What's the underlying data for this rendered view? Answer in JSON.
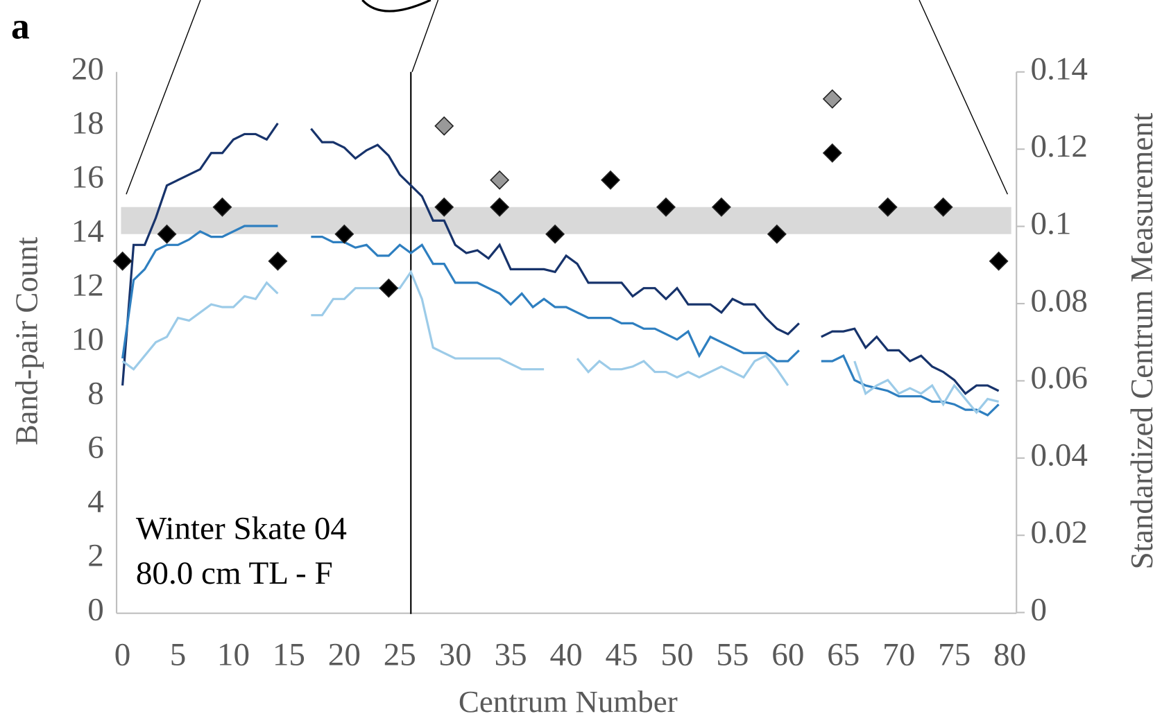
{
  "chart_data": {
    "type": "line",
    "panel_label": "a",
    "annotation": [
      "Winter Skate 04",
      "80.0 cm TL - F"
    ],
    "x_label": "Centrum Number",
    "y_label": "Band-pair Count",
    "y2_label": "Standardized Centrum Measurement",
    "xlim": [
      0,
      80
    ],
    "xticks": [
      0,
      5,
      10,
      15,
      20,
      25,
      30,
      35,
      40,
      45,
      50,
      55,
      60,
      65,
      70,
      75,
      80
    ],
    "ylim": [
      0,
      20
    ],
    "yticks": [
      0,
      2,
      4,
      6,
      8,
      10,
      12,
      14,
      16,
      18,
      20
    ],
    "y2lim": [
      0,
      0.14
    ],
    "y2ticks": [
      0,
      0.02,
      0.04,
      0.06,
      0.08,
      0.1,
      0.12,
      0.14
    ],
    "reference_band": [
      0.098,
      0.105
    ],
    "band_color": "#d9d9d9",
    "vline_x": 26,
    "x": [
      0,
      1,
      2,
      3,
      4,
      5,
      6,
      7,
      8,
      9,
      10,
      11,
      12,
      13,
      14,
      15,
      16,
      17,
      18,
      19,
      20,
      21,
      22,
      23,
      24,
      25,
      26,
      27,
      28,
      29,
      30,
      31,
      32,
      33,
      34,
      35,
      36,
      37,
      38,
      39,
      40,
      41,
      42,
      43,
      44,
      45,
      46,
      47,
      48,
      49,
      50,
      51,
      52,
      53,
      54,
      55,
      56,
      57,
      58,
      59,
      60,
      61,
      62,
      63,
      64,
      65,
      66,
      67,
      68,
      69,
      70,
      71,
      72,
      73,
      74,
      75,
      76,
      77,
      78,
      79
    ],
    "series": [
      {
        "color": "#17336b",
        "values": [
          8.4,
          13.6,
          13.6,
          14.6,
          15.8,
          16,
          16.2,
          16.4,
          17,
          17,
          17.5,
          17.7,
          17.7,
          17.5,
          18.1,
          null,
          null,
          17.9,
          17.4,
          17.4,
          17.2,
          16.8,
          17.1,
          17.3,
          16.9,
          16.2,
          15.8,
          15.4,
          14.5,
          14.5,
          13.6,
          13.3,
          13.4,
          13.1,
          13.6,
          12.7,
          12.7,
          12.7,
          12.7,
          12.6,
          13.2,
          12.9,
          12.2,
          12.2,
          12.2,
          12.2,
          11.7,
          12,
          12,
          11.6,
          12,
          11.4,
          11.4,
          11.4,
          11.1,
          11.6,
          11.4,
          11.4,
          10.9,
          10.5,
          10.3,
          10.7,
          null,
          10.2,
          10.4,
          10.4,
          10.5,
          9.8,
          10.2,
          9.7,
          9.7,
          9.3,
          9.5,
          9.1,
          8.9,
          8.6,
          8.1,
          8.4,
          8.4,
          8.2
        ]
      },
      {
        "color": "#2e7fc0",
        "values": [
          9.4,
          12.3,
          12.7,
          13.4,
          13.6,
          13.6,
          13.8,
          14.1,
          13.9,
          13.9,
          14.1,
          14.3,
          14.3,
          14.3,
          14.3,
          null,
          null,
          13.9,
          13.9,
          13.7,
          13.7,
          13.5,
          13.6,
          13.2,
          13.2,
          13.6,
          13.3,
          13.6,
          12.9,
          12.9,
          12.2,
          12.2,
          12.2,
          12,
          11.8,
          11.4,
          11.8,
          11.3,
          11.6,
          11.3,
          11.3,
          11.1,
          10.9,
          10.9,
          10.9,
          10.7,
          10.7,
          10.5,
          10.5,
          10.3,
          10.1,
          10.4,
          9.5,
          10.2,
          10,
          9.8,
          9.6,
          9.6,
          9.6,
          9.3,
          9.3,
          9.7,
          null,
          9.3,
          9.3,
          9.5,
          8.6,
          8.4,
          8.3,
          8.2,
          8,
          8,
          8,
          7.8,
          7.8,
          7.7,
          7.5,
          7.5,
          7.3,
          7.7
        ]
      },
      {
        "color": "#9ccbe8",
        "values": [
          9.3,
          9,
          9.5,
          10,
          10.2,
          10.9,
          10.8,
          11.1,
          11.4,
          11.3,
          11.3,
          11.7,
          11.6,
          12.2,
          11.8,
          null,
          null,
          11,
          11,
          11.6,
          11.6,
          12,
          12,
          12,
          12,
          12,
          12.6,
          11.6,
          9.8,
          9.6,
          9.4,
          9.4,
          9.4,
          9.4,
          9.4,
          9.2,
          9,
          9,
          9,
          null,
          null,
          9.4,
          8.9,
          9.3,
          9,
          9,
          9.1,
          9.3,
          8.9,
          8.9,
          8.7,
          8.9,
          8.7,
          8.9,
          9.1,
          8.9,
          8.7,
          9.3,
          9.5,
          9,
          8.4,
          null,
          null,
          null,
          null,
          null,
          9.3,
          8.1,
          8.4,
          8.6,
          8.1,
          8.3,
          8.1,
          8.4,
          7.7,
          8.4,
          7.9,
          7.4,
          7.9,
          7.8
        ]
      }
    ],
    "points": [
      {
        "color": "#000000",
        "axis": "y2",
        "x": [
          0,
          4,
          9,
          14,
          20,
          24,
          29,
          34,
          39,
          44,
          49,
          54,
          59,
          64,
          69,
          74,
          79
        ],
        "values": [
          0.091,
          0.098,
          0.105,
          0.091,
          0.098,
          0.084,
          0.105,
          0.105,
          0.098,
          0.112,
          0.105,
          0.105,
          0.098,
          0.119,
          0.105,
          0.105,
          0.091
        ]
      },
      {
        "color": "#999999",
        "axis": "y2",
        "x": [
          29,
          34,
          64
        ],
        "values": [
          0.126,
          0.112,
          0.133
        ]
      }
    ]
  }
}
